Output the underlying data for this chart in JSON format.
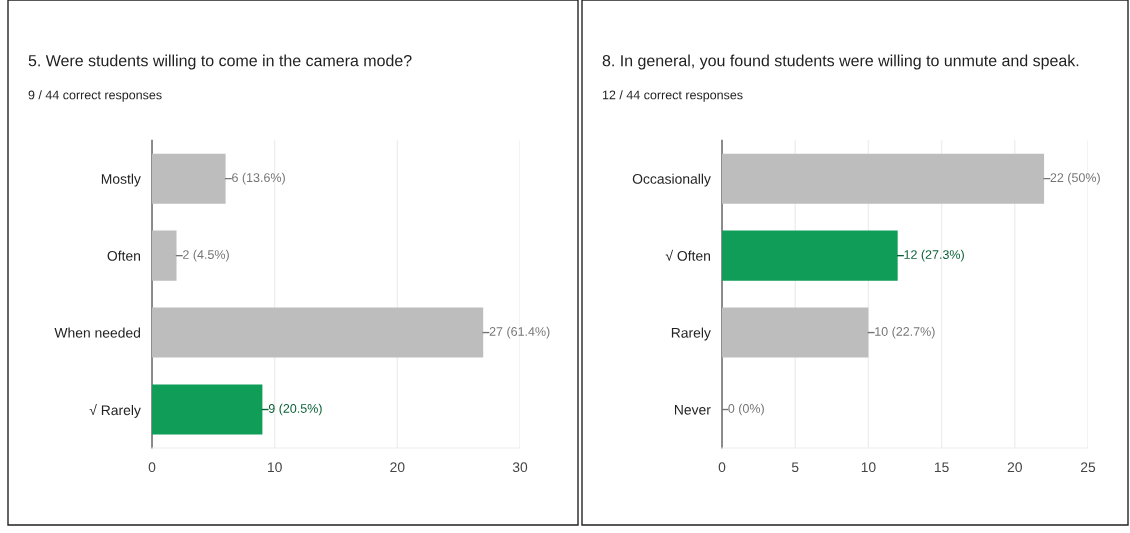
{
  "chart_data": [
    {
      "type": "bar",
      "orientation": "horizontal",
      "title": "5. Were students willing to come in the camera mode?",
      "subtitle": "9 / 44 correct responses",
      "categories": [
        "Mostly",
        "Often",
        "When needed",
        "√ Rarely"
      ],
      "values": [
        6,
        2,
        27,
        9
      ],
      "colors": [
        "#bdbdbd",
        "#bdbdbd",
        "#bdbdbd",
        "#0f9d58"
      ],
      "value_labels": [
        "6 (13.6%)",
        "2 (4.5%)",
        "27 (61.4%)",
        "9 (20.5%)"
      ],
      "xlim": [
        0,
        30
      ],
      "xticks": [
        0,
        10,
        20,
        30
      ],
      "grid": "x",
      "legend": false
    },
    {
      "type": "bar",
      "orientation": "horizontal",
      "title": "8. In general, you found students were willing to unmute and speak.",
      "subtitle": "12 / 44 correct responses",
      "categories": [
        "Occasionally",
        "√ Often",
        "Rarely",
        "Never"
      ],
      "values": [
        22,
        12,
        10,
        0
      ],
      "colors": [
        "#bdbdbd",
        "#0f9d58",
        "#bdbdbd",
        "#bdbdbd"
      ],
      "value_labels": [
        "22 (50%)",
        "12 (27.3%)",
        "10 (22.7%)",
        "0 (0%)"
      ],
      "xlim": [
        0,
        25
      ],
      "xticks": [
        0,
        5,
        10,
        15,
        20,
        25
      ],
      "grid": "x",
      "legend": false
    }
  ]
}
